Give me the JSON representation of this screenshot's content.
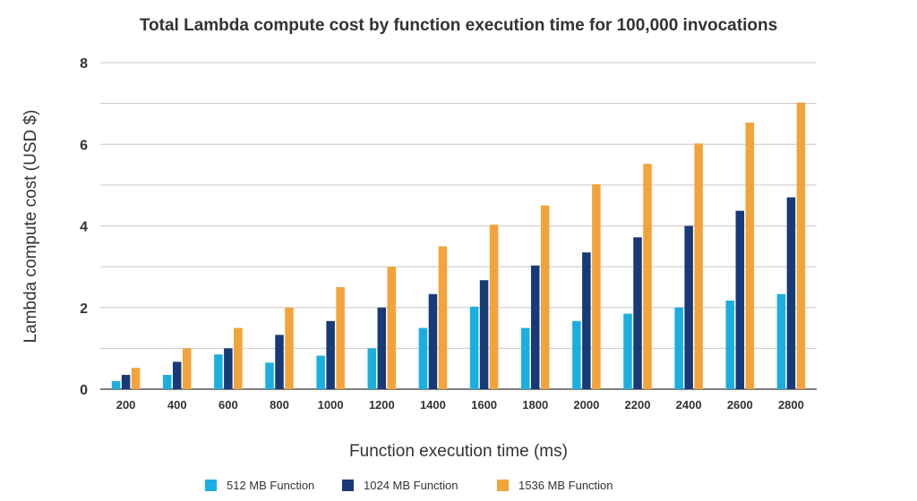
{
  "chart_data": {
    "type": "bar",
    "title": "Total Lambda compute cost by function execution time for 100,000 invocations",
    "xlabel": "Function execution time (ms)",
    "ylabel": "Lambda compute cost (USD $)",
    "ylim": [
      0,
      8
    ],
    "yticks": [
      0,
      2,
      4,
      6,
      8
    ],
    "grid": true,
    "legend_position": "bottom",
    "categories": [
      "200",
      "400",
      "600",
      "800",
      "1000",
      "1200",
      "1400",
      "1600",
      "1800",
      "2000",
      "2200",
      "2400",
      "2600",
      "2800"
    ],
    "series": [
      {
        "name": "512 MB Function",
        "color": "#1aafe0",
        "values": [
          0.2,
          0.35,
          0.85,
          0.65,
          0.82,
          1.0,
          1.5,
          2.02,
          1.5,
          1.67,
          1.85,
          2.0,
          2.17,
          2.33
        ]
      },
      {
        "name": "1024 MB Function",
        "color": "#173a78",
        "values": [
          0.35,
          0.67,
          1.0,
          1.33,
          1.67,
          2.0,
          2.33,
          2.67,
          3.03,
          3.35,
          3.72,
          4.0,
          4.37,
          4.7
        ]
      },
      {
        "name": "1536 MB Function",
        "color": "#f2a33a",
        "values": [
          0.52,
          1.0,
          1.5,
          2.0,
          2.5,
          3.0,
          3.5,
          4.03,
          4.5,
          5.02,
          5.52,
          6.02,
          6.53,
          7.02
        ]
      }
    ]
  }
}
